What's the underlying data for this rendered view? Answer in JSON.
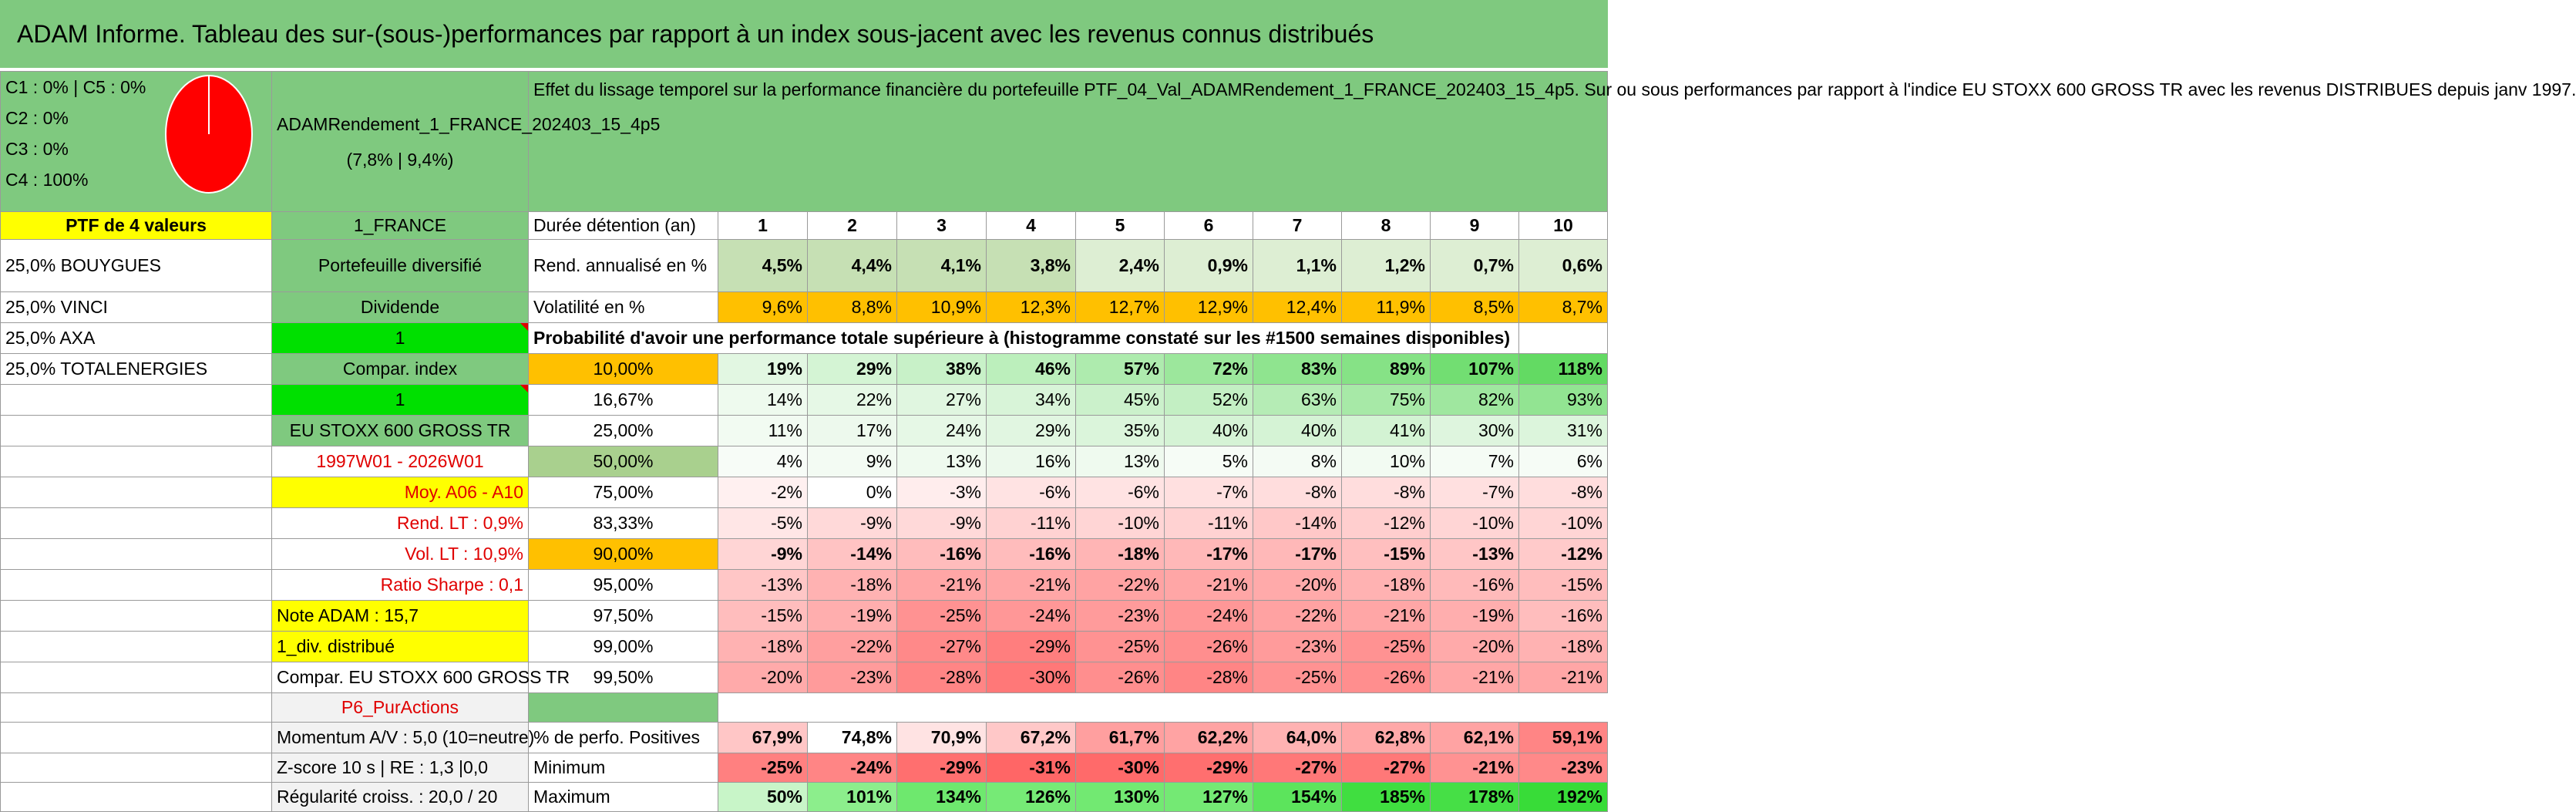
{
  "title": "ADAM Informe. Tableau des sur-(sous-)performances par rapport à un index sous-jacent avec les revenus connus distribués",
  "composition": [
    "C1 : 0% | C5 : 0%",
    "C2 : 0%",
    "C3 : 0%",
    "C4 : 100%"
  ],
  "pie": {
    "share_c4": 1.0,
    "color": "#ff0000"
  },
  "portfolio_name": "ADAMRendement_1_FRANCE_202403_15_4p5",
  "portfolio_stats": "(7,8% | 9,4%)",
  "description": "Effet du lissage temporel sur la performance financière du portefeuille PTF_04_Val_ADAMRendement_1_FRANCE_202403_15_4p5. Sur ou sous performances par rapport à l'indice EU STOXX 600 GROSS TR avec les revenus DISTRIBUES depuis janv 1997.",
  "ptf_label": "PTF de 4 valeurs",
  "holdings": [
    "25,0% BOUYGUES",
    "25,0% VINCI",
    "25,0% AXA",
    "25,0% TOTALENERGIES"
  ],
  "params": {
    "market": "1_FRANCE",
    "type": "Portefeuille diversifié",
    "dividend_label": "Dividende",
    "dividend_value": "1",
    "compar_label": "Compar. index",
    "compar_value": "1",
    "index": "EU STOXX 600 GROSS TR",
    "period": "1997W01 - 2026W01",
    "moy": "Moy. A06 - A10",
    "rend_lt": "Rend. LT : 0,9%",
    "vol_lt": "Vol. LT : 10,9%",
    "sharpe": "Ratio Sharpe : 0,1",
    "note": "Note ADAM : 15,7",
    "div": "1_div. distribué",
    "compar_index": "Compar. EU STOXX 600 GROSS TR",
    "p6": "P6_PurActions",
    "momentum": "Momentum A/V : 5,0 (10=neutre)",
    "zscore": "Z-score 10 s | RE : 1,3 |0,0",
    "regularite": "Régularité croiss. : 20,0 / 20"
  },
  "years_label": "Durée détention (an)",
  "years": [
    "1",
    "2",
    "3",
    "4",
    "5",
    "6",
    "7",
    "8",
    "9",
    "10"
  ],
  "rend_label": "Rend. annualisé en %",
  "rend": [
    "4,5%",
    "4,4%",
    "4,1%",
    "3,8%",
    "2,4%",
    "0,9%",
    "1,1%",
    "1,2%",
    "0,7%",
    "0,6%"
  ],
  "vol_label": "Volatilité en %",
  "vol": [
    "9,6%",
    "8,8%",
    "10,9%",
    "12,3%",
    "12,7%",
    "12,9%",
    "12,4%",
    "11,9%",
    "8,5%",
    "8,7%"
  ],
  "prob_label": "Probabilité d'avoir une performance totale supérieure à (histogramme constaté sur les #1500 semaines disponibles)",
  "quantiles": [
    {
      "q": "10,00%",
      "v": [
        "19%",
        "29%",
        "38%",
        "46%",
        "57%",
        "72%",
        "83%",
        "89%",
        "107%",
        "118%"
      ]
    },
    {
      "q": "16,67%",
      "v": [
        "14%",
        "22%",
        "27%",
        "34%",
        "45%",
        "52%",
        "63%",
        "75%",
        "82%",
        "93%"
      ]
    },
    {
      "q": "25,00%",
      "v": [
        "11%",
        "17%",
        "24%",
        "29%",
        "35%",
        "40%",
        "40%",
        "41%",
        "30%",
        "31%"
      ]
    },
    {
      "q": "50,00%",
      "v": [
        "4%",
        "9%",
        "13%",
        "16%",
        "13%",
        "5%",
        "8%",
        "10%",
        "7%",
        "6%"
      ]
    },
    {
      "q": "75,00%",
      "v": [
        "-2%",
        "0%",
        "-3%",
        "-6%",
        "-6%",
        "-7%",
        "-8%",
        "-8%",
        "-7%",
        "-8%"
      ]
    },
    {
      "q": "83,33%",
      "v": [
        "-5%",
        "-9%",
        "-9%",
        "-11%",
        "-10%",
        "-11%",
        "-14%",
        "-12%",
        "-10%",
        "-10%"
      ]
    },
    {
      "q": "90,00%",
      "v": [
        "-9%",
        "-14%",
        "-16%",
        "-16%",
        "-18%",
        "-17%",
        "-17%",
        "-15%",
        "-13%",
        "-12%"
      ]
    },
    {
      "q": "95,00%",
      "v": [
        "-13%",
        "-18%",
        "-21%",
        "-21%",
        "-22%",
        "-21%",
        "-20%",
        "-18%",
        "-16%",
        "-15%"
      ]
    },
    {
      "q": "97,50%",
      "v": [
        "-15%",
        "-19%",
        "-25%",
        "-24%",
        "-23%",
        "-24%",
        "-22%",
        "-21%",
        "-19%",
        "-16%"
      ]
    },
    {
      "q": "99,00%",
      "v": [
        "-18%",
        "-22%",
        "-27%",
        "-29%",
        "-25%",
        "-26%",
        "-23%",
        "-25%",
        "-20%",
        "-18%"
      ]
    },
    {
      "q": "99,50%",
      "v": [
        "-20%",
        "-23%",
        "-28%",
        "-30%",
        "-26%",
        "-28%",
        "-25%",
        "-26%",
        "-21%",
        "-21%"
      ]
    }
  ],
  "pos_label": "% de perfo. Positives",
  "pos": [
    "67,9%",
    "74,8%",
    "70,9%",
    "67,2%",
    "61,7%",
    "62,2%",
    "64,0%",
    "62,8%",
    "62,1%",
    "59,1%"
  ],
  "min_label": "Minimum",
  "min": [
    "-25%",
    "-24%",
    "-29%",
    "-31%",
    "-30%",
    "-29%",
    "-27%",
    "-27%",
    "-21%",
    "-23%"
  ],
  "max_label": "Maximum",
  "max": [
    "50%",
    "101%",
    "134%",
    "126%",
    "130%",
    "127%",
    "154%",
    "185%",
    "178%",
    "192%"
  ],
  "colors": {
    "header_green": "#7fc97f",
    "yellow": "#ffff00",
    "orange": "#ffc000",
    "bright_green": "#00e000",
    "label_red": "#e00000"
  }
}
